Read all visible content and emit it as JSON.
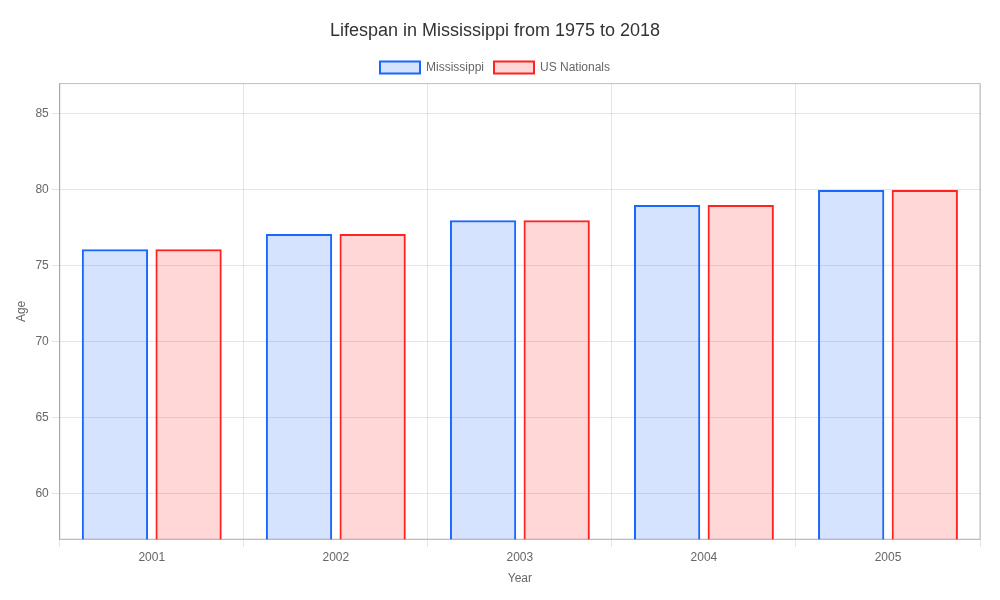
{
  "chart_data": {
    "type": "bar",
    "title": "Lifespan in Mississippi from 1975 to 2018",
    "x_label": "Year",
    "y_label": "Age",
    "categories": [
      "2001",
      "2002",
      "2003",
      "2004",
      "2005"
    ],
    "series": [
      {
        "name": "Mississippi",
        "color": "#1a66ff",
        "values": [
          76.1,
          77.1,
          78.0,
          79.0,
          80.0
        ]
      },
      {
        "name": "US Nationals",
        "color": "#ff2222",
        "values": [
          76.1,
          77.1,
          78.0,
          79.0,
          80.0
        ]
      }
    ],
    "ylim": [
      57,
      87
    ],
    "yticks": [
      60,
      65,
      70,
      75,
      80,
      85
    ],
    "grid": true,
    "legend": "top"
  }
}
